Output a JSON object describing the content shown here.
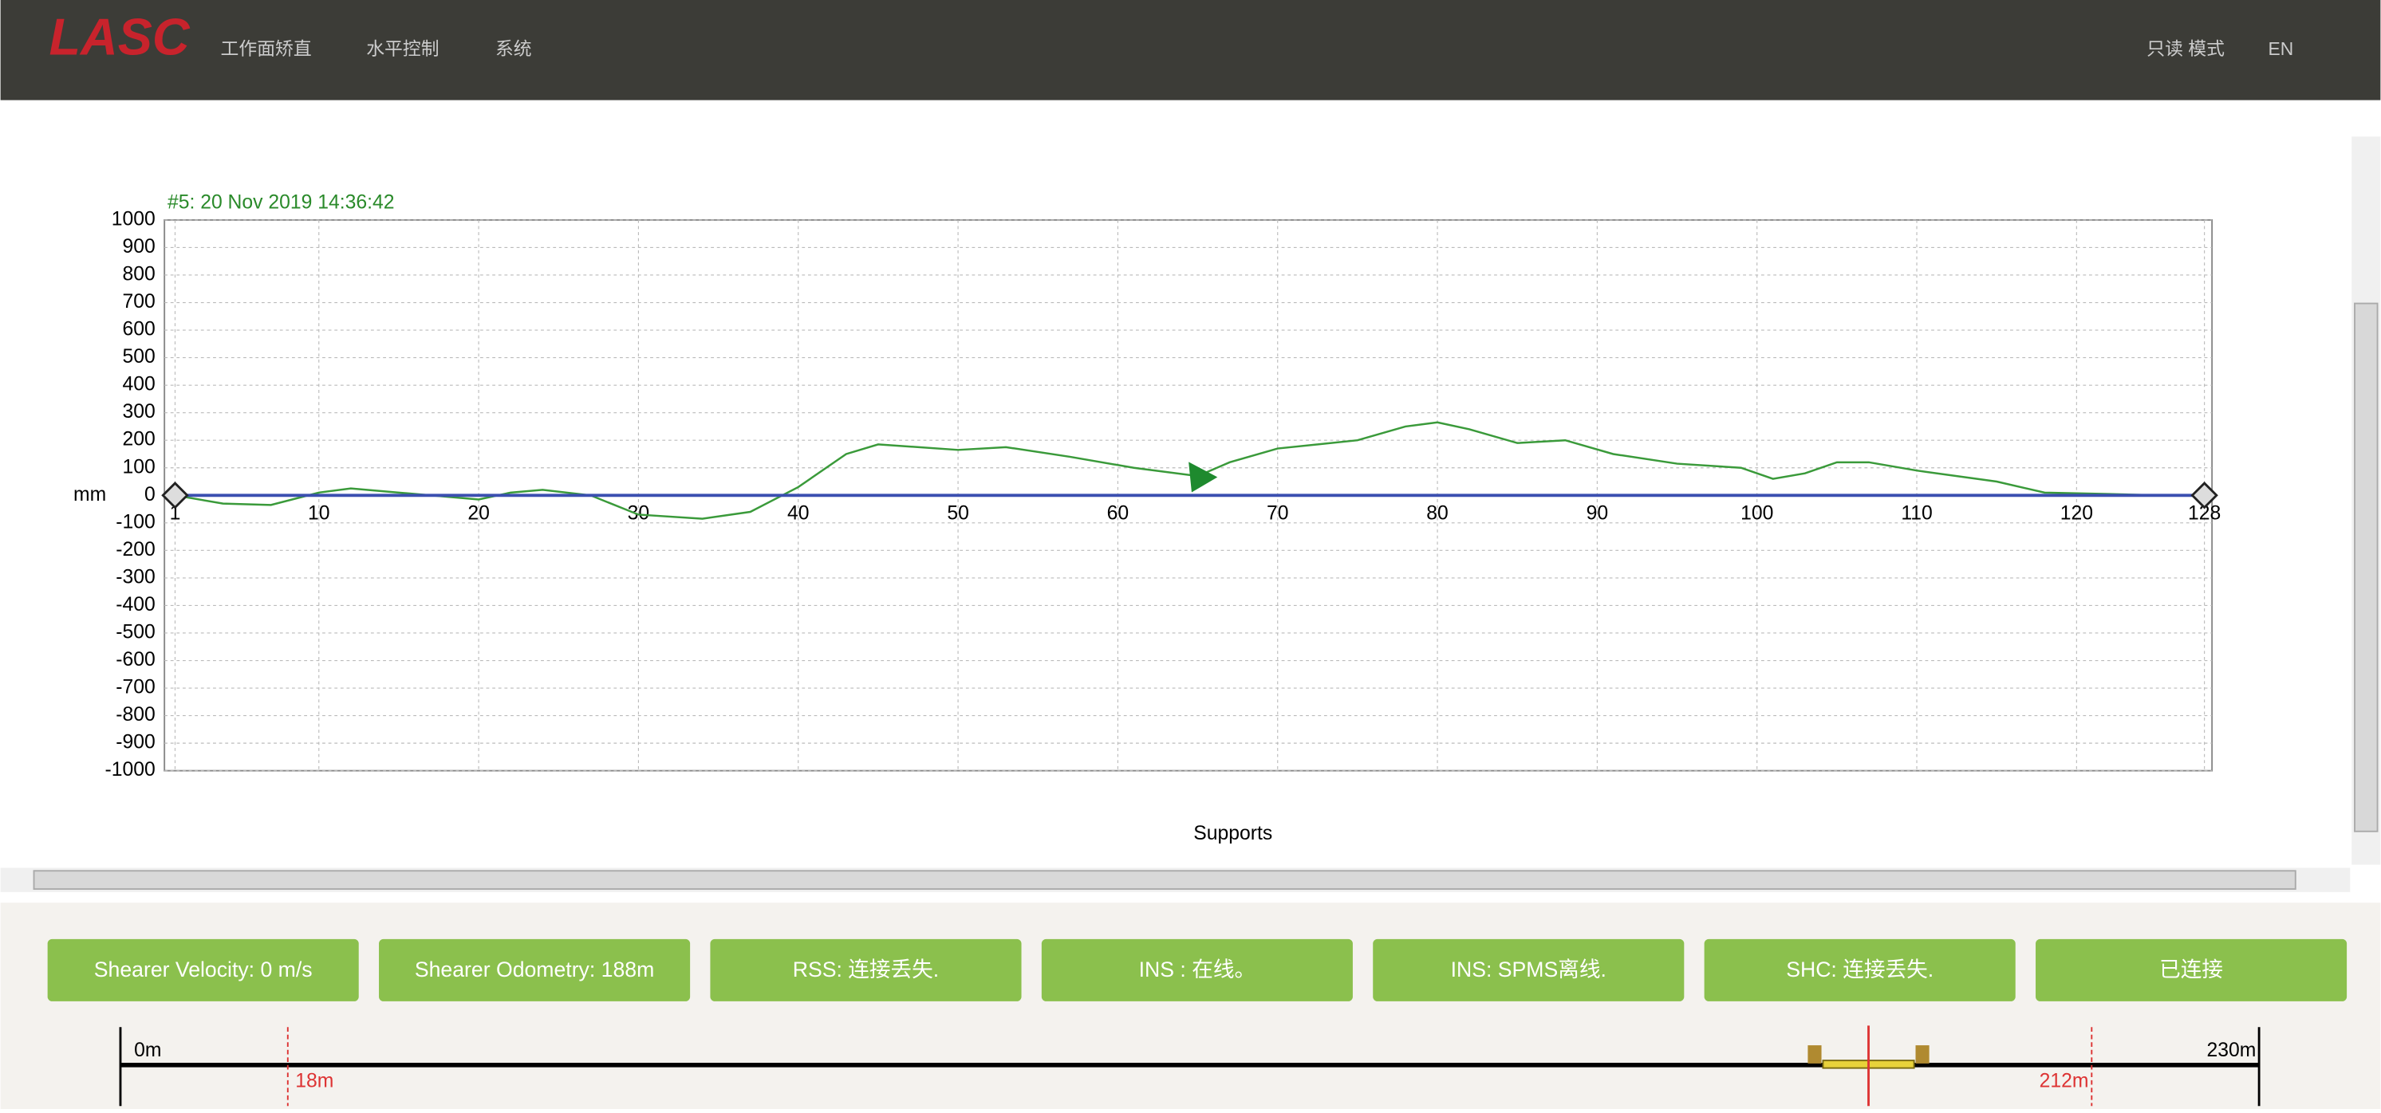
{
  "nav": {
    "logo": "LASC",
    "menu": [
      "工作面矫直",
      "水平控制",
      "系统"
    ],
    "right": [
      "只读 模式",
      "EN"
    ]
  },
  "chart_data": {
    "type": "line",
    "title": "#5: 20 Nov 2019 14:36:42",
    "xlabel": "Supports",
    "ylabel": "mm",
    "xlim": [
      1,
      128
    ],
    "xticks": [
      1,
      10,
      20,
      30,
      40,
      50,
      60,
      70,
      80,
      90,
      100,
      110,
      120,
      128
    ],
    "ylim": [
      -1000,
      1000
    ],
    "yticks": [
      -1000,
      -900,
      -800,
      -700,
      -600,
      -500,
      -400,
      -300,
      -200,
      -100,
      0,
      100,
      200,
      300,
      400,
      500,
      600,
      700,
      800,
      900,
      1000
    ],
    "grid": true,
    "marker_x": 65,
    "series": [
      {
        "color": "#3a9a3a",
        "x": [
          1,
          4,
          7,
          10,
          12,
          15,
          20,
          22,
          24,
          27,
          30,
          34,
          37,
          40,
          43,
          45,
          50,
          53,
          57,
          61,
          65,
          67,
          70,
          75,
          78,
          80,
          82,
          85,
          88,
          91,
          95,
          99,
          101,
          103,
          105,
          107,
          110,
          115,
          118,
          122,
          125,
          128
        ],
        "values": [
          0,
          -30,
          -35,
          10,
          25,
          10,
          -15,
          10,
          20,
          0,
          -70,
          -85,
          -60,
          30,
          150,
          185,
          165,
          175,
          140,
          100,
          70,
          120,
          170,
          200,
          250,
          265,
          240,
          190,
          200,
          150,
          115,
          100,
          60,
          80,
          120,
          120,
          90,
          50,
          10,
          5,
          0,
          0
        ]
      },
      {
        "color": "#3b4fb0",
        "x": [
          1,
          128
        ],
        "values": [
          0,
          0
        ]
      }
    ]
  },
  "status": [
    "Shearer Velocity: 0 m/s",
    "Shearer Odometry: 188m",
    "RSS: 连接丢失.",
    "INS : 在线。",
    "INS: SPMS离线.",
    "SHC: 连接丢失.",
    "已连接"
  ],
  "position_bar": {
    "range": [
      {
        "value": 0,
        "label": "0m"
      },
      {
        "value": 230,
        "label": "230m"
      }
    ],
    "limits": [
      {
        "value": 18,
        "label": "18m"
      },
      {
        "value": 212,
        "label": "212m"
      }
    ],
    "shearer": 188
  }
}
